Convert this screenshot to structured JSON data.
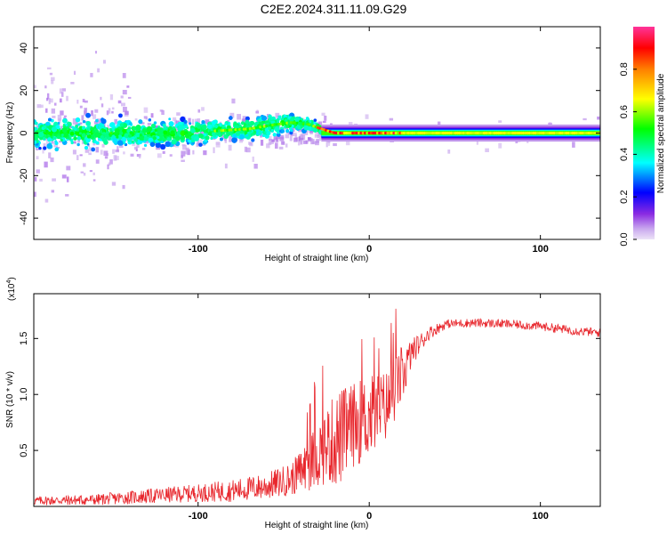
{
  "title": "C2E2.2024.311.11.09.G29",
  "chart_data": [
    {
      "type": "heatmap",
      "name": "spectrogram",
      "xlabel": "Height of straight line (km)",
      "ylabel": "Frequency (Hz)",
      "xlim": [
        -196,
        135
      ],
      "ylim": [
        -50,
        50
      ],
      "xticks": [
        -100,
        0,
        100
      ],
      "xtick_labels": [
        "-100",
        "0",
        "100"
      ],
      "yticks": [
        -40,
        -20,
        0,
        20,
        40
      ],
      "ytick_labels": [
        "-40",
        "-20",
        "0",
        "20",
        "40"
      ],
      "colorbar": {
        "label": "Normalized spectral amplitude",
        "range": [
          0,
          1
        ],
        "ticks": [
          0,
          0.2,
          0.4,
          0.6,
          0.8
        ],
        "tick_labels": [
          "0.0",
          "0.2",
          "0.4",
          "0.6",
          "0.8"
        ],
        "colors": [
          "#e8d8f5",
          "#8a2be2",
          "#0000ff",
          "#00ffff",
          "#00ff00",
          "#ffff00",
          "#ff7f00",
          "#ff0000",
          "#ff3399"
        ]
      },
      "ridge": {
        "x": [
          -196,
          -170,
          -140,
          -110,
          -90,
          -70,
          -55,
          -45,
          -35,
          -28,
          -20,
          -10,
          0,
          10,
          20,
          40,
          80,
          135
        ],
        "center_hz": [
          0,
          0,
          0,
          0,
          1,
          2,
          4,
          5,
          4,
          2,
          0,
          0,
          0,
          0,
          0,
          0,
          0,
          0
        ],
        "half_width_hz": [
          8,
          8,
          8,
          7,
          6,
          6,
          6,
          5,
          4,
          3,
          2,
          2,
          2,
          2,
          2,
          2,
          2,
          2
        ]
      }
    },
    {
      "type": "line",
      "name": "snr",
      "xlabel": "Height of straight line (km)",
      "ylabel": "SNR (10 * v/v)",
      "multiplier_label": "(x10",
      "multiplier_exponent": "4",
      "xlim": [
        -196,
        135
      ],
      "ylim": [
        0,
        1.9
      ],
      "xticks": [
        -100,
        0,
        100
      ],
      "xtick_labels": [
        "-100",
        "0",
        "100"
      ],
      "yticks": [
        0.5,
        1.0,
        1.5
      ],
      "ytick_labels": [
        "0.5",
        "1.0",
        "1.5"
      ],
      "color": "#e8262c",
      "envelope": {
        "x": [
          -196,
          -160,
          -140,
          -100,
          -80,
          -60,
          -45,
          -35,
          -25,
          -18,
          -10,
          0,
          10,
          15,
          20,
          25,
          35,
          45,
          60,
          80,
          100,
          120,
          135
        ],
        "mean": [
          0.05,
          0.06,
          0.08,
          0.12,
          0.14,
          0.18,
          0.25,
          0.38,
          0.55,
          0.6,
          0.72,
          0.8,
          0.9,
          1.05,
          1.2,
          1.38,
          1.55,
          1.63,
          1.64,
          1.63,
          1.61,
          1.57,
          1.55
        ],
        "spread": [
          0.04,
          0.05,
          0.06,
          0.08,
          0.1,
          0.12,
          0.15,
          0.25,
          0.35,
          0.45,
          0.38,
          0.38,
          0.32,
          0.3,
          0.25,
          0.12,
          0.06,
          0.04,
          0.04,
          0.04,
          0.04,
          0.04,
          0.04
        ]
      }
    }
  ]
}
